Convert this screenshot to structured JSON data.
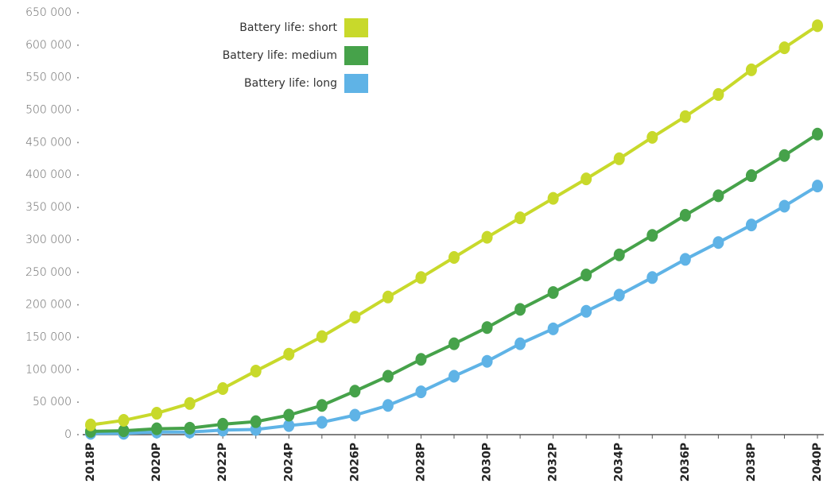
{
  "chart_data": {
    "type": "line",
    "categories": [
      "2018P",
      null,
      "2020P",
      null,
      "2022P",
      null,
      "2024P",
      null,
      "2026P",
      null,
      "2028P",
      null,
      "2030P",
      null,
      "2032P",
      null,
      "2034P",
      null,
      "2036P",
      null,
      "2038P",
      null,
      "2040P"
    ],
    "series": [
      {
        "name": "Battery life: short",
        "color": "#c8d92b",
        "values": [
          15000,
          22000,
          33000,
          48000,
          71000,
          98000,
          124000,
          151000,
          181000,
          212000,
          242000,
          273000,
          304000,
          334000,
          364000,
          394000,
          425000,
          458000,
          490000,
          524000,
          562000,
          596000,
          630000
        ]
      },
      {
        "name": "Battery life: medium",
        "color": "#46a24a",
        "values": [
          5000,
          6000,
          9000,
          10000,
          16000,
          20000,
          30000,
          45000,
          67000,
          90000,
          116000,
          140000,
          165000,
          193000,
          219000,
          246000,
          277000,
          307000,
          338000,
          368000,
          399000,
          430000,
          463000
        ]
      },
      {
        "name": "Battery life: long",
        "color": "#5fb3e6",
        "values": [
          2000,
          2000,
          4000,
          4000,
          7000,
          8000,
          14000,
          19000,
          30000,
          45000,
          66000,
          90000,
          113000,
          140000,
          163000,
          190000,
          215000,
          242000,
          270000,
          296000,
          323000,
          352000,
          383000
        ]
      }
    ],
    "ylim": [
      0,
      650000
    ],
    "yticks": [
      0,
      {
        "value": 50000,
        "label": "50 000"
      },
      {
        "value": 100000,
        "label": "100 000"
      },
      {
        "value": 150000,
        "label": "150 000"
      },
      {
        "value": 200000,
        "label": "200 000"
      },
      {
        "value": 250000,
        "label": "250 000"
      },
      {
        "value": 300000,
        "label": "300 000"
      },
      {
        "value": 350000,
        "label": "350 000"
      },
      {
        "value": 400000,
        "label": "400 000"
      },
      {
        "value": 450000,
        "label": "450 000"
      },
      {
        "value": 500000,
        "label": "500 000"
      },
      {
        "value": 550000,
        "label": "550 000"
      },
      {
        "value": 600000,
        "label": "600 000"
      },
      {
        "value": 650000,
        "label": "650 000"
      }
    ],
    "legend": "upper-left",
    "grid": false
  }
}
